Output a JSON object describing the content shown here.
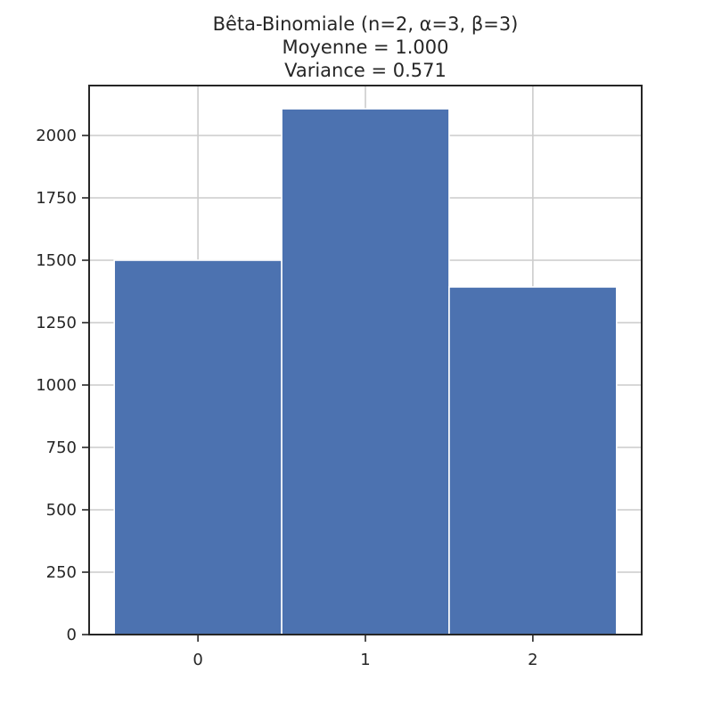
{
  "chart_data": {
    "type": "bar",
    "title_lines": [
      "Bêta-Binomiale (n=2, α=3, β=3)",
      "Moyenne =  1.000",
      "Variance =  0.571"
    ],
    "xlabel": "",
    "ylabel": "",
    "categories": [
      "0",
      "1",
      "2"
    ],
    "values": [
      1500,
      2107,
      1393
    ],
    "xlim": [
      -0.65,
      2.65
    ],
    "ylim": [
      0,
      2200
    ],
    "yticks": [
      0,
      250,
      500,
      750,
      1000,
      1250,
      1500,
      1750,
      2000
    ],
    "grid": true,
    "legend": "none",
    "bar_color": "#4c72b0"
  }
}
